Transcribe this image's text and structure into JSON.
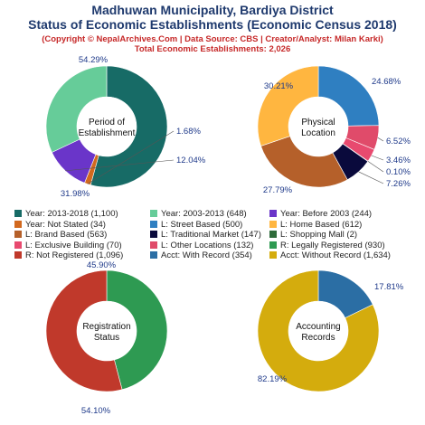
{
  "header": {
    "title_line1": "Madhuwan Municipality, Bardiya District",
    "title_line2": "Status of Economic Establishments (Economic Census 2018)",
    "copyright": "(Copyright © NepalArchives.Com | Data Source: CBS | Creator/Analyst: Milan Karki)",
    "total": "Total Economic Establishments: 2,026"
  },
  "chart_data": [
    {
      "type": "pie",
      "center_label": [
        "Period of",
        "Establishment"
      ],
      "slices": [
        {
          "name": "Year: 2013-2018",
          "count": 1100,
          "pct": 54.29,
          "label": "54.29%",
          "color": "#176b66"
        },
        {
          "name": "Year: Not Stated",
          "count": 34,
          "pct": 1.68,
          "label": "1.68%",
          "color": "#d2691e"
        },
        {
          "name": "Year: Before 2003",
          "count": 244,
          "pct": 12.04,
          "label": "12.04%",
          "color": "#6a35c9"
        },
        {
          "name": "Year: 2003-2013",
          "count": 648,
          "pct": 31.98,
          "label": "31.98%",
          "color": "#66cc99"
        }
      ]
    },
    {
      "type": "pie",
      "center_label": [
        "Physical",
        "Location"
      ],
      "slices": [
        {
          "name": "L: Street Based",
          "count": 500,
          "pct": 24.68,
          "label": "24.68%",
          "color": "#2f7fc1"
        },
        {
          "name": "L: Exclusive Building",
          "count": 70,
          "pct": 3.46,
          "label": "3.46%",
          "color": "#e84a6f"
        },
        {
          "name": "L: Shopping Mall",
          "count": 2,
          "pct": 0.1,
          "label": "0.10%",
          "color": "#2e6b3a"
        },
        {
          "name": "L: Traditional Market",
          "count": 147,
          "pct": 7.26,
          "label": "7.26%",
          "color": "#0a0a3c"
        },
        {
          "name": "L: Brand Based",
          "count": 563,
          "pct": 27.79,
          "label": "27.79%",
          "color": "#b5602a"
        },
        {
          "name": "L: Home Based",
          "count": 612,
          "pct": 30.21,
          "label": "30.21%",
          "color": "#ffb640"
        },
        {
          "name": "L: Other Locations",
          "count": 132,
          "pct": 6.52,
          "label": "6.52%",
          "color": "#e04b6a"
        }
      ]
    },
    {
      "type": "pie",
      "center_label": [
        "Registration",
        "Status"
      ],
      "slices": [
        {
          "name": "R: Legally Registered",
          "count": 930,
          "pct": 45.9,
          "label": "45.90%",
          "color": "#2e9a52"
        },
        {
          "name": "R: Not Registered",
          "count": 1096,
          "pct": 54.1,
          "label": "54.10%",
          "color": "#c0392b"
        }
      ]
    },
    {
      "type": "pie",
      "center_label": [
        "Accounting",
        "Records"
      ],
      "slices": [
        {
          "name": "Acct: With Record",
          "count": 354,
          "pct": 17.81,
          "label": "17.81%",
          "color": "#2b6ea4"
        },
        {
          "name": "Acct: Without Record",
          "count": 1634,
          "pct": 82.19,
          "label": "82.19%",
          "color": "#d4ac0d"
        }
      ]
    }
  ],
  "legend": [
    {
      "label": "Year: 2013-2018 (1,100)",
      "color": "#176b66"
    },
    {
      "label": "Year: 2003-2013 (648)",
      "color": "#66cc99"
    },
    {
      "label": "Year: Before 2003 (244)",
      "color": "#6a35c9"
    },
    {
      "label": "Year: Not Stated (34)",
      "color": "#d2691e"
    },
    {
      "label": "L: Street Based (500)",
      "color": "#2f7fc1"
    },
    {
      "label": "L: Home Based (612)",
      "color": "#ffb640"
    },
    {
      "label": "L: Brand Based (563)",
      "color": "#b5602a"
    },
    {
      "label": "L: Traditional Market (147)",
      "color": "#0a0a3c"
    },
    {
      "label": "L: Shopping Mall (2)",
      "color": "#2e6b3a"
    },
    {
      "label": "L: Exclusive Building (70)",
      "color": "#e84a6f"
    },
    {
      "label": "L: Other Locations (132)",
      "color": "#e04b6a"
    },
    {
      "label": "R: Legally Registered (930)",
      "color": "#2e9a52"
    },
    {
      "label": "R: Not Registered (1,096)",
      "color": "#c0392b"
    },
    {
      "label": "Acct: With Record (354)",
      "color": "#2b6ea4"
    },
    {
      "label": "Acct: Without Record (1,634)",
      "color": "#d4ac0d"
    }
  ]
}
